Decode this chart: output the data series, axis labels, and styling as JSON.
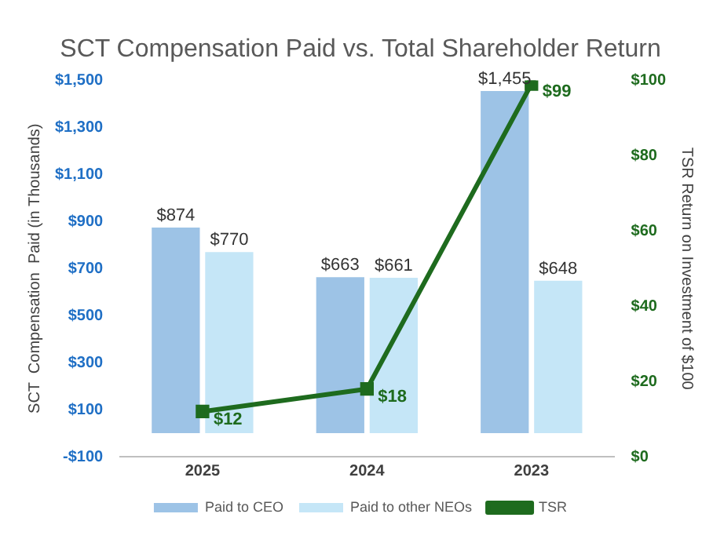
{
  "chart_data": {
    "type": "bar",
    "title": "SCT Compensation Paid vs. Total Shareholder Return",
    "ylabel": "SCT  Compensation  Paid (in Thousands)",
    "y2label": "TSR Return on Investment of $100",
    "categories": [
      "2025",
      "2024",
      "2023"
    ],
    "series": [
      {
        "name": "Paid to CEO",
        "color": "#9dc3e6",
        "values": [
          874,
          663,
          1455
        ],
        "value_labels": [
          "$874",
          "$663",
          "$1,455"
        ]
      },
      {
        "name": "Paid to other NEOs",
        "color": "#c5e6f7",
        "values": [
          770,
          661,
          648
        ],
        "value_labels": [
          "$770",
          "$661",
          "$648"
        ]
      },
      {
        "name": "TSR",
        "type": "line",
        "axis": "y2",
        "color": "#1e6b1e",
        "values": [
          12,
          18,
          99
        ],
        "value_labels": [
          "$12",
          "$18",
          "$99"
        ]
      }
    ],
    "ylim": [
      -100,
      1500
    ],
    "yticks": [
      {
        "value": -100,
        "label": "-$100"
      },
      {
        "value": 100,
        "label": "$100"
      },
      {
        "value": 300,
        "label": "$300"
      },
      {
        "value": 500,
        "label": "$500"
      },
      {
        "value": 700,
        "label": "$700"
      },
      {
        "value": 900,
        "label": "$900"
      },
      {
        "value": 1100,
        "label": "$1,100"
      },
      {
        "value": 1300,
        "label": "$1,300"
      },
      {
        "value": 1500,
        "label": "$1,500"
      }
    ],
    "y2lim": [
      0,
      100
    ],
    "y2ticks": [
      {
        "value": 0,
        "label": "$0"
      },
      {
        "value": 20,
        "label": "$20"
      },
      {
        "value": 40,
        "label": "$40"
      },
      {
        "value": 60,
        "label": "$60"
      },
      {
        "value": 80,
        "label": "$80"
      },
      {
        "value": 100,
        "label": "$100"
      }
    ],
    "legend": "bottom",
    "marker": "square",
    "line_style": "solid",
    "grid": false
  }
}
